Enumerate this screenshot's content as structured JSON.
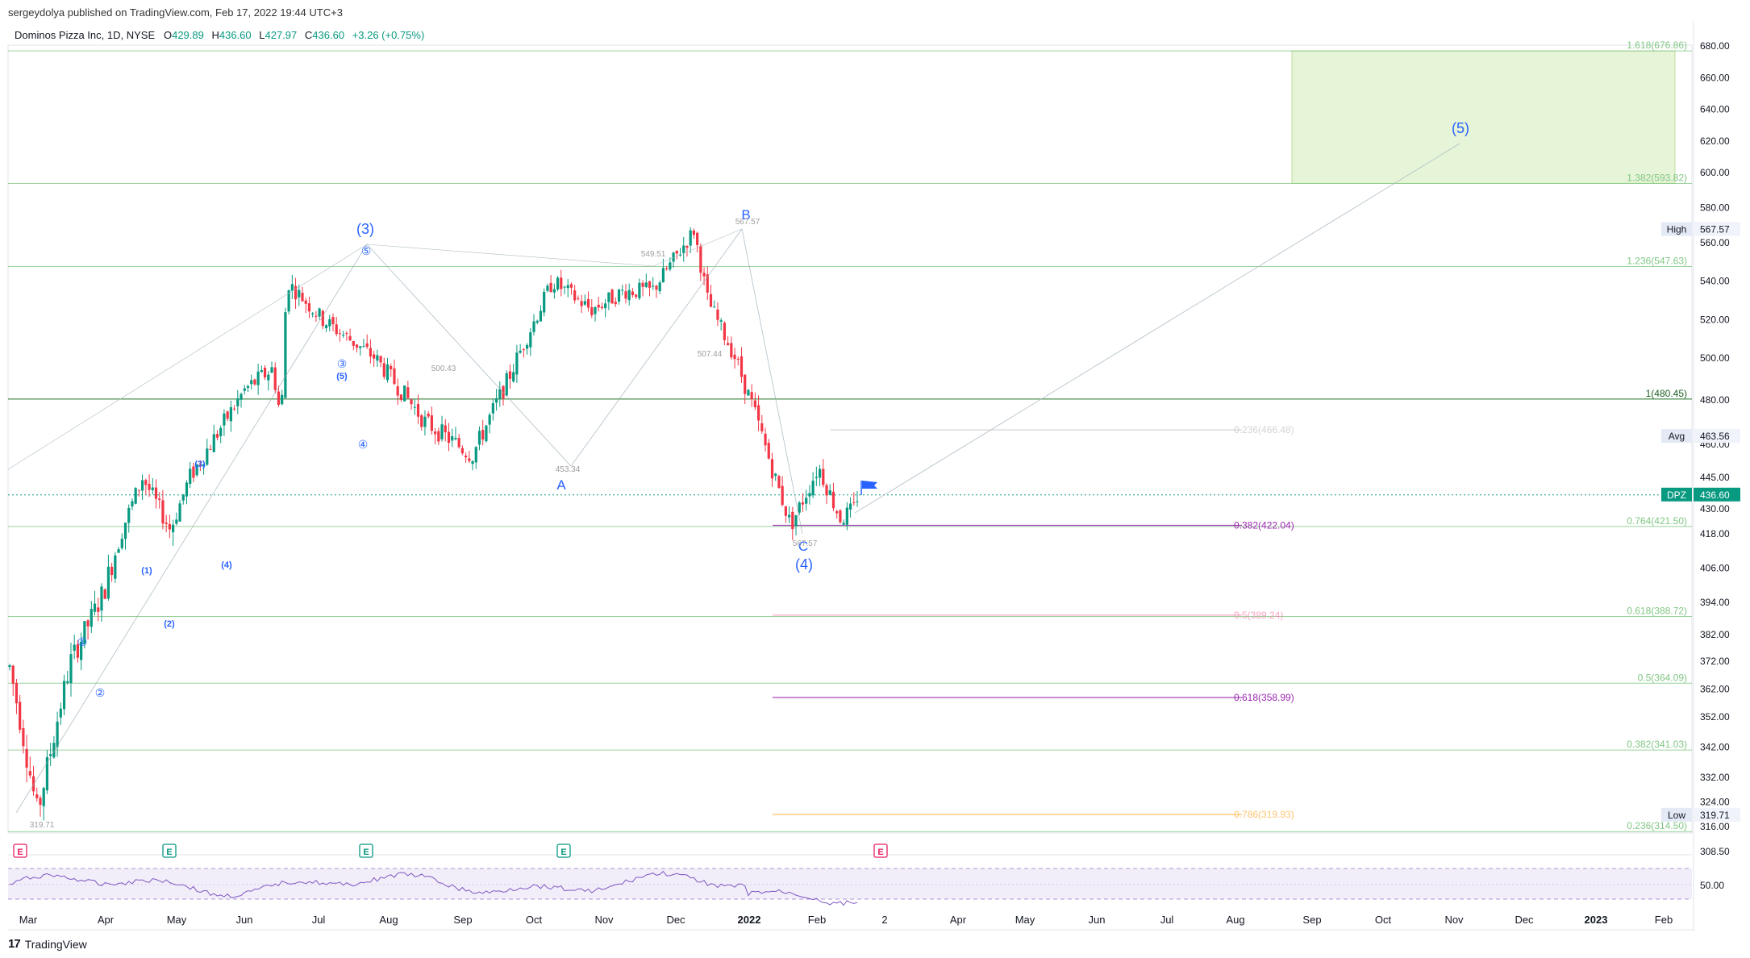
{
  "header": {
    "published_by": "sergeydolya published on TradingView.com, Feb 17, 2022 19:44 UTC+3"
  },
  "symbol": {
    "name": "Dominos Pizza Inc, 1D, NYSE",
    "o_label": "O",
    "o": "429.89",
    "h_label": "H",
    "h": "436.60",
    "l_label": "L",
    "l": "427.97",
    "c_label": "C",
    "c": "436.60",
    "change": "+3.26 (+0.75%)"
  },
  "footer": {
    "brand": "TradingView",
    "logo": "17"
  },
  "colors": {
    "up": "#089981",
    "down": "#f23645",
    "wave_label": "#2962ff",
    "fib_green": "#81c784",
    "fib_purple": "#9c27b0",
    "target_box": "#e6f4d7",
    "rsi_line": "#7e57c2",
    "rsi_band": "#ede7f6"
  },
  "chart_data": {
    "type": "candlestick",
    "title": "Dominos Pizza Inc, 1D, NYSE",
    "ylim": [
      305,
      690
    ],
    "x_tick_labels": [
      "Mar",
      "Apr",
      "May",
      "Jun",
      "Jul",
      "Aug",
      "Sep",
      "Oct",
      "Nov",
      "Dec",
      "2022",
      "Feb",
      "2",
      "Apr",
      "May",
      "Jun",
      "Jul",
      "Aug",
      "Sep",
      "Oct",
      "Nov",
      "Dec",
      "2023",
      "Feb"
    ],
    "y_tick_labels": [
      "680.00",
      "660.00",
      "640.00",
      "620.00",
      "600.00",
      "580.00",
      "560.00",
      "540.00",
      "520.00",
      "500.00",
      "480.00",
      "460.00",
      "445.00",
      "430.00",
      "418.00",
      "406.00",
      "394.00",
      "382.00",
      "372.00",
      "362.00",
      "352.00",
      "342.00",
      "332.00",
      "324.00",
      "316.00",
      "308.50"
    ],
    "price_labels": [
      {
        "label": "High",
        "value": "567.57"
      },
      {
        "label": "Avg",
        "value": "463.56"
      },
      {
        "label": "DPZ",
        "value": "436.60"
      },
      {
        "label": "Low",
        "value": "319.71"
      }
    ],
    "fib_extension_levels": [
      {
        "label": "1.618(676.86)",
        "value": 676.86
      },
      {
        "label": "1.382(593.82)",
        "value": 593.82
      },
      {
        "label": "1.236(547.63)",
        "value": 547.63
      },
      {
        "label": "1(480.45)",
        "value": 480.45
      },
      {
        "label": "0.764(421.50)",
        "value": 421.5
      },
      {
        "label": "0.618(388.72)",
        "value": 388.72
      },
      {
        "label": "0.5(364.09)",
        "value": 364.09
      },
      {
        "label": "0.382(341.03)",
        "value": 341.03
      },
      {
        "label": "0.236(314.50)",
        "value": 314.5
      }
    ],
    "fib_retracement_levels": [
      {
        "label": "0.236(466.48)",
        "value": 466.48
      },
      {
        "label": "0.382(422.04)",
        "value": 422.04
      },
      {
        "label": "0.5(389.24)",
        "value": 389.24
      },
      {
        "label": "0.618(358.99)",
        "value": 358.99
      },
      {
        "label": "0.786(319.93)",
        "value": 319.93
      }
    ],
    "pivot_prices": [
      "319.71",
      "453.34",
      "549.51",
      "567.57",
      "500.43",
      "507.44",
      "567.57"
    ],
    "wave_labels": [
      "(3)",
      "(4)",
      "(5)",
      "A",
      "B",
      "C",
      "①",
      "②",
      "③",
      "④",
      "⑤",
      "(1)",
      "(2)",
      "(3)",
      "(4)",
      "(5)"
    ],
    "earnings_markers": [
      "E",
      "E",
      "E",
      "E",
      "E"
    ],
    "rsi": {
      "level_label": "50.00"
    }
  }
}
